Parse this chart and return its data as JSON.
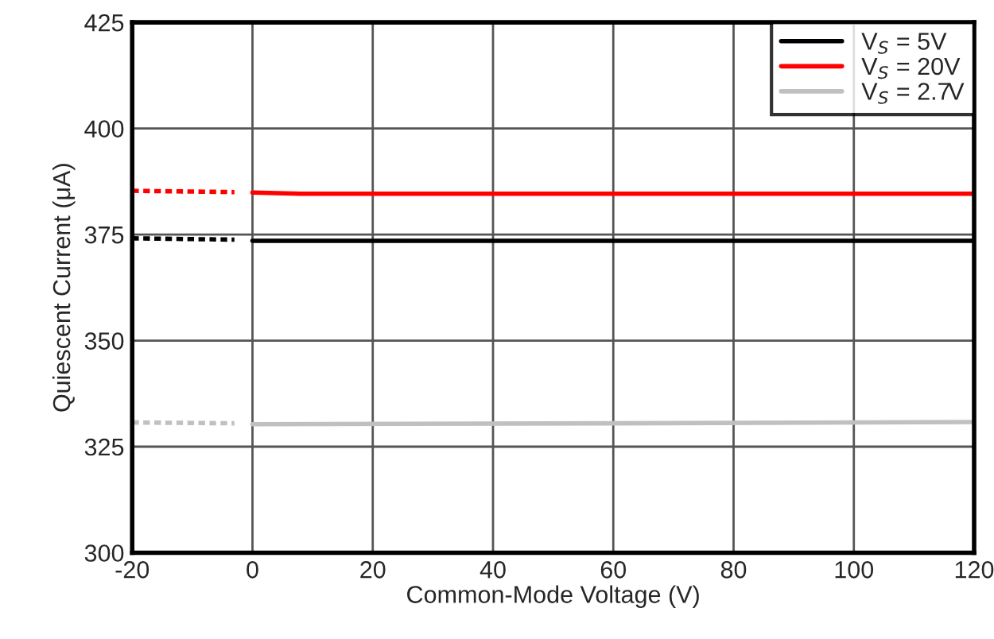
{
  "chart_data": {
    "type": "line",
    "xlabel": "Common-Mode Voltage (V)",
    "ylabel": "Quiescent Current (μA)",
    "xlim": [
      -20,
      120
    ],
    "xticks": [
      -20,
      0,
      20,
      40,
      60,
      80,
      100,
      120
    ],
    "ylim": [
      300,
      425
    ],
    "yticks": [
      300,
      325,
      350,
      375,
      400,
      425
    ],
    "grid": true,
    "legend": "top right",
    "line_style": "solid",
    "series": [
      {
        "name": "V$_{S}$ = 5V",
        "color": "#000000",
        "x": [
          0,
          120
        ],
        "values": [
          373.5,
          373.5
        ]
      },
      {
        "name": "V$_{S}$ = 20V",
        "color": "#ff0000",
        "x": [
          0,
          8,
          120
        ],
        "values": [
          384.9,
          384.6,
          384.6
        ]
      },
      {
        "name": "V$_{S}$ = 2.7V",
        "color": "#c0c0c0",
        "x": [
          0,
          60,
          120
        ],
        "values": [
          330.3,
          330.5,
          330.8
        ]
      },
      {
        "color": "#000000",
        "x": [
          -20,
          -3
        ],
        "values": [
          374.1,
          373.8
        ],
        "line_style": "dotted"
      },
      {
        "color": "#ff0000",
        "x": [
          -20,
          -3
        ],
        "values": [
          385.3,
          385.0
        ],
        "line_style": "dotted"
      },
      {
        "color": "#c0c0c0",
        "x": [
          -20,
          -3
        ],
        "values": [
          330.7,
          330.5
        ],
        "line_style": "dotted"
      }
    ]
  }
}
